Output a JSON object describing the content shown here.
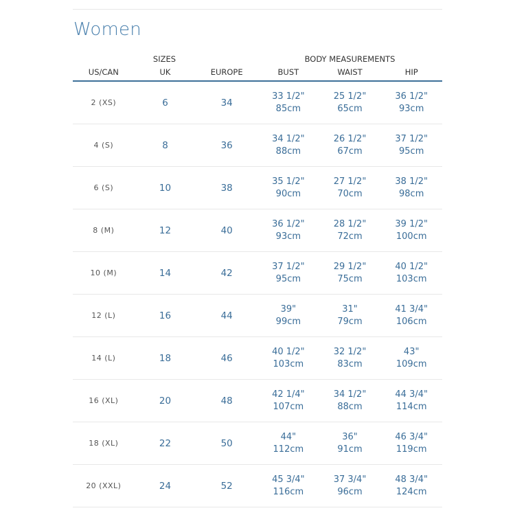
{
  "title": "Women",
  "group_headers": {
    "sizes": "SIZES",
    "body": "BODY MEASUREMENTS"
  },
  "columns": [
    "US/CAN",
    "UK",
    "EUROPE",
    "BUST",
    "WAIST",
    "HIP"
  ],
  "rows": [
    {
      "us": "2 (XS)",
      "uk": "6",
      "eu": "34",
      "bust_in": "33 1/2\"",
      "bust_cm": "85cm",
      "waist_in": "25 1/2\"",
      "waist_cm": "65cm",
      "hip_in": "36 1/2\"",
      "hip_cm": "93cm"
    },
    {
      "us": "4 (S)",
      "uk": "8",
      "eu": "36",
      "bust_in": "34 1/2\"",
      "bust_cm": "88cm",
      "waist_in": "26 1/2\"",
      "waist_cm": "67cm",
      "hip_in": "37 1/2\"",
      "hip_cm": "95cm"
    },
    {
      "us": "6 (S)",
      "uk": "10",
      "eu": "38",
      "bust_in": "35 1/2\"",
      "bust_cm": "90cm",
      "waist_in": "27 1/2\"",
      "waist_cm": "70cm",
      "hip_in": "38 1/2\"",
      "hip_cm": "98cm"
    },
    {
      "us": "8 (M)",
      "uk": "12",
      "eu": "40",
      "bust_in": "36 1/2\"",
      "bust_cm": "93cm",
      "waist_in": "28 1/2\"",
      "waist_cm": "72cm",
      "hip_in": "39 1/2\"",
      "hip_cm": "100cm"
    },
    {
      "us": "10 (M)",
      "uk": "14",
      "eu": "42",
      "bust_in": "37 1/2\"",
      "bust_cm": "95cm",
      "waist_in": "29 1/2\"",
      "waist_cm": "75cm",
      "hip_in": "40 1/2\"",
      "hip_cm": "103cm"
    },
    {
      "us": "12 (L)",
      "uk": "16",
      "eu": "44",
      "bust_in": "39\"",
      "bust_cm": "99cm",
      "waist_in": "31\"",
      "waist_cm": "79cm",
      "hip_in": "41 3/4\"",
      "hip_cm": "106cm"
    },
    {
      "us": "14 (L)",
      "uk": "18",
      "eu": "46",
      "bust_in": "40 1/2\"",
      "bust_cm": "103cm",
      "waist_in": "32 1/2\"",
      "waist_cm": "83cm",
      "hip_in": "43\"",
      "hip_cm": "109cm"
    },
    {
      "us": "16 (XL)",
      "uk": "20",
      "eu": "48",
      "bust_in": "42 1/4\"",
      "bust_cm": "107cm",
      "waist_in": "34 1/2\"",
      "waist_cm": "88cm",
      "hip_in": "44 3/4\"",
      "hip_cm": "114cm"
    },
    {
      "us": "18 (XL)",
      "uk": "22",
      "eu": "50",
      "bust_in": "44\"",
      "bust_cm": "112cm",
      "waist_in": "36\"",
      "waist_cm": "91cm",
      "hip_in": "46 3/4\"",
      "hip_cm": "119cm"
    },
    {
      "us": "20 (XXL)",
      "uk": "24",
      "eu": "52",
      "bust_in": "45 3/4\"",
      "bust_cm": "116cm",
      "waist_in": "37 3/4\"",
      "waist_cm": "96cm",
      "hip_in": "48 3/4\"",
      "hip_cm": "124cm"
    }
  ]
}
